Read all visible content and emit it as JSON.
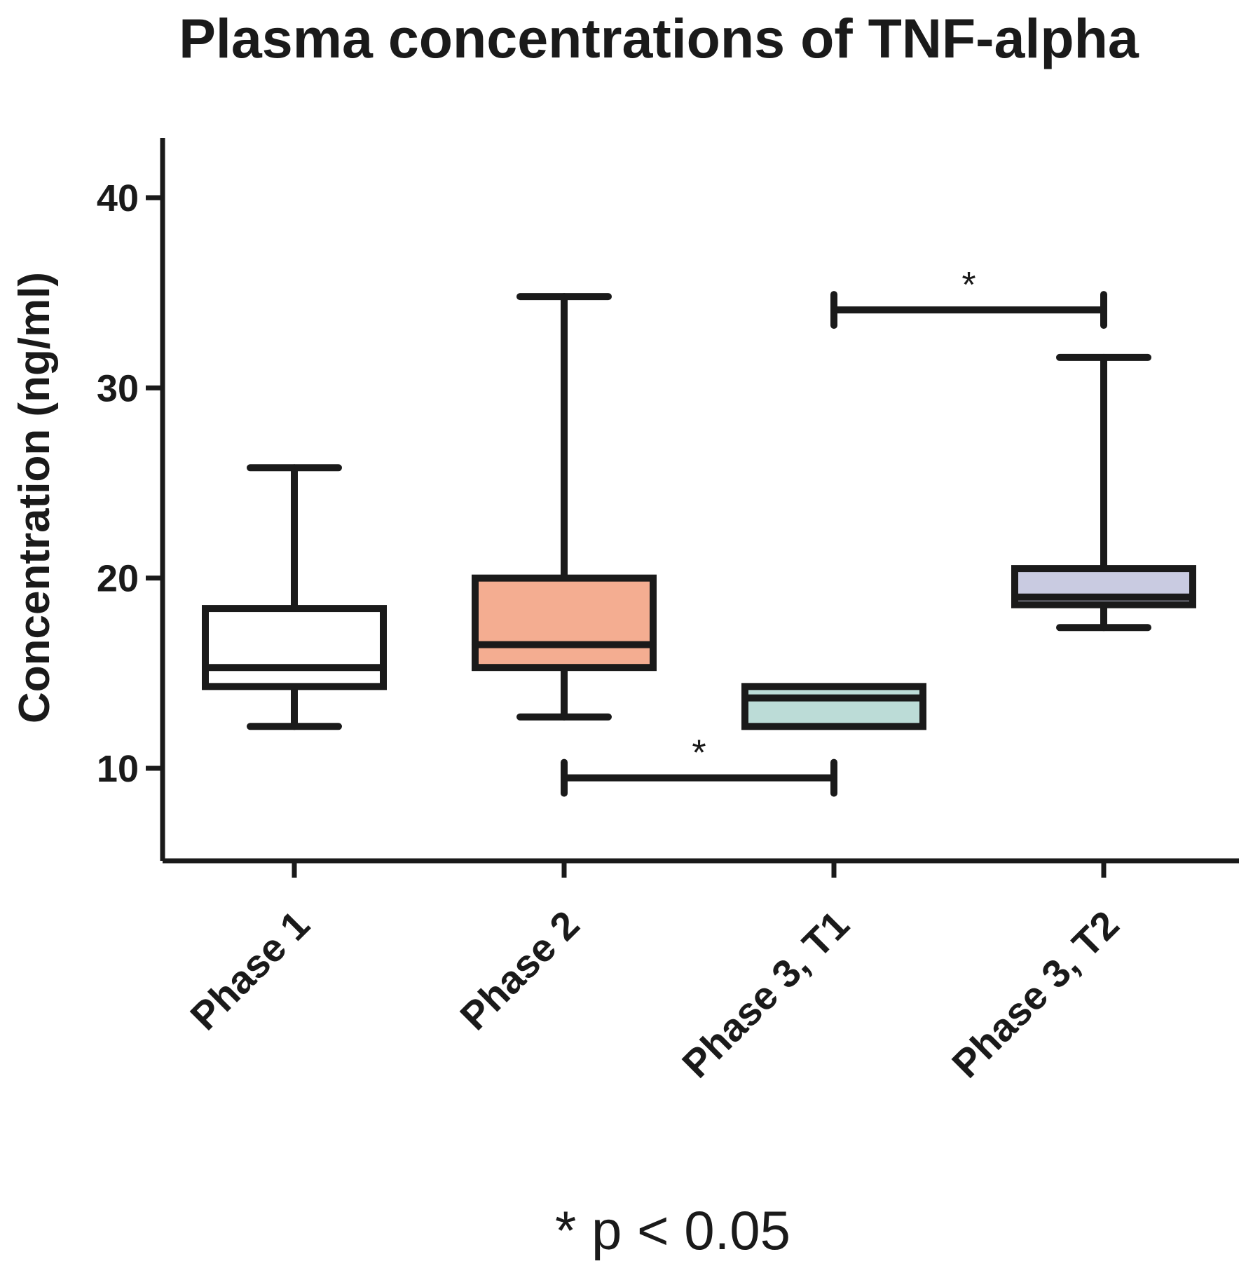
{
  "chart_data": {
    "type": "boxplot",
    "title": "Plasma concentrations of TNF-alpha",
    "xlabel": "",
    "ylabel": "Concentration (ng/ml)",
    "ylim": [
      5,
      43
    ],
    "yticks": [
      10,
      20,
      30,
      40
    ],
    "categories": [
      "Phase 1",
      "Phase 2",
      "Phase 3, T1",
      "Phase 3, T2"
    ],
    "series": [
      {
        "name": "Phase 1",
        "min": 12.2,
        "q1": 14.3,
        "median": 15.3,
        "q3": 18.4,
        "max": 25.8,
        "fill": "#ffffff"
      },
      {
        "name": "Phase 2",
        "min": 12.7,
        "q1": 15.3,
        "median": 16.5,
        "q3": 20.0,
        "max": 34.8,
        "fill": "#f4ad91"
      },
      {
        "name": "Phase 3, T1",
        "min": 12.2,
        "q1": 12.2,
        "median": 13.7,
        "q3": 14.3,
        "max": 14.3,
        "fill": "#bcdcd7"
      },
      {
        "name": "Phase 3, T2",
        "min": 17.4,
        "q1": 18.6,
        "median": 19.0,
        "q3": 20.5,
        "max": 31.6,
        "fill": "#c9cbe1"
      }
    ],
    "significance": [
      {
        "from": "Phase 2",
        "to": "Phase 3, T1",
        "y": 9.5,
        "label": "*"
      },
      {
        "from": "Phase 3, T1",
        "to": "Phase 3, T2",
        "y": 34.1,
        "label": "*"
      }
    ],
    "footnote": "* p < 0.05"
  }
}
